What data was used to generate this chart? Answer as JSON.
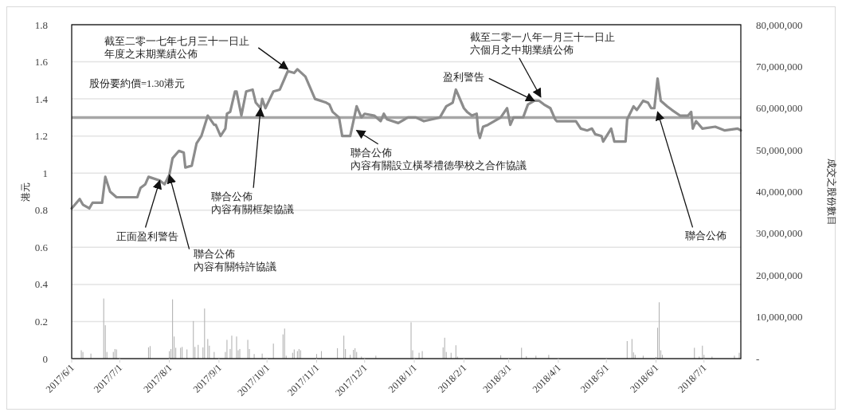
{
  "chart_data": {
    "type": "line",
    "xlabel": null,
    "ylabel": "港元",
    "y2label": "成交之股份數目",
    "xlim": [
      "2017-06-01",
      "2018-07-24"
    ],
    "xticks": [
      {
        "value": "2017-06-01",
        "label": "2017/6/1"
      },
      {
        "value": "2017-07-01",
        "label": "2017/7/1"
      },
      {
        "value": "2017-08-01",
        "label": "2017/8/1"
      },
      {
        "value": "2017-09-01",
        "label": "2017/9/1"
      },
      {
        "value": "2017-10-01",
        "label": "2017/10/1"
      },
      {
        "value": "2017-11-01",
        "label": "2017/11/1"
      },
      {
        "value": "2017-12-01",
        "label": "2017/12/1"
      },
      {
        "value": "2018-01-01",
        "label": "2018/1/1"
      },
      {
        "value": "2018-02-01",
        "label": "2018/2/1"
      },
      {
        "value": "2018-03-01",
        "label": "2018/3/1"
      },
      {
        "value": "2018-04-01",
        "label": "2018/4/1"
      },
      {
        "value": "2018-05-01",
        "label": "2018/5/1"
      },
      {
        "value": "2018-06-01",
        "label": "2018/6/1"
      },
      {
        "value": "2018-07-01",
        "label": "2018/7/1"
      }
    ],
    "ylim": [
      0,
      1.8
    ],
    "yticks": [
      0,
      0.2,
      0.4,
      0.6,
      0.8,
      1,
      1.2,
      1.4,
      1.6,
      1.8
    ],
    "y2lim": [
      0,
      80000000
    ],
    "y2ticks": [
      {
        "value": 0,
        "label": "-"
      },
      {
        "value": 10000000,
        "label": "10,000,000"
      },
      {
        "value": 20000000,
        "label": "20,000,000"
      },
      {
        "value": 30000000,
        "label": "30,000,000"
      },
      {
        "value": 40000000,
        "label": "40,000,000"
      },
      {
        "value": 50000000,
        "label": "50,000,000"
      },
      {
        "value": 60000000,
        "label": "60,000,000"
      },
      {
        "value": 70000000,
        "label": "70,000,000"
      },
      {
        "value": 80000000,
        "label": "80,000,000"
      }
    ],
    "grid": "y",
    "line_style": "solid",
    "marker": "none",
    "series": [
      {
        "color": "#8c8c8c",
        "x": [
          "2017-06-01",
          "2017-06-06",
          "2017-06-08",
          "2017-06-12",
          "2017-06-14",
          "2017-06-20",
          "2017-06-22",
          "2017-06-25",
          "2017-06-29",
          "2017-07-06",
          "2017-07-12",
          "2017-07-14",
          "2017-07-17",
          "2017-07-19",
          "2017-07-26",
          "2017-07-29",
          "2017-08-01",
          "2017-08-03",
          "2017-08-07",
          "2017-08-10",
          "2017-08-11",
          "2017-08-15",
          "2017-08-18",
          "2017-08-21",
          "2017-08-25",
          "2017-08-29",
          "2017-08-30",
          "2017-09-02",
          "2017-09-05",
          "2017-09-06",
          "2017-09-08",
          "2017-09-11",
          "2017-09-12",
          "2017-09-15",
          "2017-09-18",
          "2017-09-22",
          "2017-09-24",
          "2017-09-27",
          "2017-09-28",
          "2017-09-30",
          "2017-10-05",
          "2017-10-09",
          "2017-10-12",
          "2017-10-14",
          "2017-10-18",
          "2017-10-20",
          "2017-10-25",
          "2017-10-31",
          "2017-11-07",
          "2017-11-09",
          "2017-11-11",
          "2017-11-15",
          "2017-11-17",
          "2017-11-22",
          "2017-11-26",
          "2017-11-29",
          "2017-12-01",
          "2017-12-07",
          "2017-12-11",
          "2017-12-13",
          "2017-12-15",
          "2017-12-22",
          "2017-12-28",
          "2018-01-02",
          "2018-01-07",
          "2018-01-12",
          "2018-01-17",
          "2018-01-21",
          "2018-01-25",
          "2018-01-27",
          "2018-02-01",
          "2018-02-03",
          "2018-02-06",
          "2018-02-09",
          "2018-02-10",
          "2018-02-11",
          "2018-02-13",
          "2018-02-16",
          "2018-02-24",
          "2018-02-28",
          "2018-03-02",
          "2018-03-04",
          "2018-03-10",
          "2018-03-13",
          "2018-03-17",
          "2018-03-20",
          "2018-03-23",
          "2018-03-27",
          "2018-03-30",
          "2018-03-31",
          "2018-04-12",
          "2018-04-15",
          "2018-04-19",
          "2018-04-22",
          "2018-04-24",
          "2018-04-28",
          "2018-04-29",
          "2018-05-04",
          "2018-05-06",
          "2018-05-13",
          "2018-05-14",
          "2018-05-18",
          "2018-05-20",
          "2018-05-24",
          "2018-05-27",
          "2018-05-29",
          "2018-05-31",
          "2018-06-02",
          "2018-06-04",
          "2018-06-08",
          "2018-06-11",
          "2018-06-16",
          "2018-06-21",
          "2018-06-23",
          "2018-06-24",
          "2018-06-26",
          "2018-06-30",
          "2018-07-08",
          "2018-07-14",
          "2018-07-22",
          "2018-07-24"
        ],
        "values": [
          0.81,
          0.86,
          0.83,
          0.81,
          0.84,
          0.84,
          0.98,
          0.9,
          0.87,
          0.87,
          0.87,
          0.92,
          0.94,
          0.98,
          0.96,
          0.94,
          0.99,
          1.08,
          1.12,
          1.11,
          1.03,
          1.04,
          1.16,
          1.2,
          1.31,
          1.26,
          1.26,
          1.2,
          1.24,
          1.32,
          1.33,
          1.44,
          1.44,
          1.31,
          1.44,
          1.45,
          1.38,
          1.35,
          1.4,
          1.35,
          1.44,
          1.45,
          1.51,
          1.55,
          1.54,
          1.56,
          1.52,
          1.4,
          1.38,
          1.37,
          1.33,
          1.3,
          1.2,
          1.2,
          1.36,
          1.3,
          1.32,
          1.31,
          1.28,
          1.32,
          1.29,
          1.27,
          1.3,
          1.3,
          1.28,
          1.29,
          1.3,
          1.36,
          1.38,
          1.45,
          1.35,
          1.33,
          1.31,
          1.32,
          1.22,
          1.19,
          1.25,
          1.26,
          1.3,
          1.35,
          1.26,
          1.3,
          1.3,
          1.37,
          1.39,
          1.39,
          1.37,
          1.35,
          1.29,
          1.28,
          1.28,
          1.24,
          1.23,
          1.24,
          1.21,
          1.2,
          1.17,
          1.24,
          1.17,
          1.17,
          1.29,
          1.36,
          1.34,
          1.39,
          1.38,
          1.35,
          1.35,
          1.51,
          1.39,
          1.36,
          1.34,
          1.31,
          1.31,
          1.33,
          1.24,
          1.28,
          1.24,
          1.25,
          1.23,
          1.24,
          1.23
        ]
      },
      {
        "type": "bar",
        "axis": "y2",
        "color": "#b4b4b4",
        "x": [
          "2017-06-07",
          "2017-06-08",
          "2017-06-13",
          "2017-06-21",
          "2017-06-22",
          "2017-06-23",
          "2017-06-27",
          "2017-06-28",
          "2017-06-29",
          "2017-07-19",
          "2017-07-20",
          "2017-08-01",
          "2017-08-02",
          "2017-08-03",
          "2017-08-04",
          "2017-08-05",
          "2017-08-08",
          "2017-08-09",
          "2017-08-12",
          "2017-08-16",
          "2017-08-17",
          "2017-08-19",
          "2017-08-22",
          "2017-08-23",
          "2017-08-25",
          "2017-08-26",
          "2017-08-29",
          "2017-09-05",
          "2017-09-06",
          "2017-09-08",
          "2017-09-09",
          "2017-09-12",
          "2017-09-13",
          "2017-09-14",
          "2017-09-19",
          "2017-09-20",
          "2017-09-23",
          "2017-09-28",
          "2017-10-05",
          "2017-10-11",
          "2017-10-12",
          "2017-10-13",
          "2017-10-17",
          "2017-10-18",
          "2017-10-20",
          "2017-10-21",
          "2017-10-22",
          "2017-11-01",
          "2017-11-04",
          "2017-11-14",
          "2017-11-18",
          "2017-11-19",
          "2017-11-22",
          "2017-11-24",
          "2017-11-25",
          "2017-11-26",
          "2017-11-29",
          "2017-12-08",
          "2017-12-30",
          "2017-12-31",
          "2018-01-04",
          "2018-01-06",
          "2018-01-19",
          "2018-01-20",
          "2018-01-21",
          "2018-01-24",
          "2018-01-27",
          "2018-01-28",
          "2018-02-24",
          "2018-03-09",
          "2018-03-12",
          "2018-03-18",
          "2018-03-26",
          "2018-05-14",
          "2018-05-17",
          "2018-05-18",
          "2018-05-19",
          "2018-05-24",
          "2018-06-01",
          "2018-06-02",
          "2018-06-03",
          "2018-06-04",
          "2018-06-05",
          "2018-06-25",
          "2018-06-28",
          "2018-06-30",
          "2018-07-01",
          "2018-07-06",
          "2018-07-20",
          "2018-07-23"
        ],
        "values": [
          2000000,
          1600000,
          1200000,
          14400000,
          8000000,
          1600000,
          1600000,
          2300000,
          2200000,
          2700000,
          3000000,
          1800000,
          2300000,
          14200000,
          5300000,
          2600000,
          2600000,
          2800000,
          2200000,
          9000000,
          2800000,
          3300000,
          2700000,
          12000000,
          4700000,
          3100000,
          1600000,
          1600000,
          4500000,
          2300000,
          5500000,
          5300000,
          2000000,
          2300000,
          4500000,
          2300000,
          1100000,
          1200000,
          3600000,
          5800000,
          7200000,
          700000,
          1400000,
          2200000,
          1800000,
          2300000,
          2000000,
          1100000,
          1800000,
          2500000,
          5500000,
          2300000,
          900000,
          2100000,
          2500000,
          1600000,
          500000,
          700000,
          8700000,
          2000000,
          1400000,
          1800000,
          2700000,
          5000000,
          1600000,
          1400000,
          3200000,
          500000,
          800000,
          2600000,
          600000,
          700000,
          900000,
          4200000,
          4700000,
          1500000,
          900000,
          700000,
          400000,
          7400000,
          13500000,
          2000000,
          900000,
          2600000,
          500000,
          3100000,
          900000,
          500000,
          700000,
          1400000
        ]
      }
    ],
    "ref_lines": [
      {
        "axis": "y",
        "value": 1.3,
        "label": "股份要約價=1.30港元",
        "color": "#a6a6a6"
      }
    ],
    "annotations": [
      {
        "text": "截至二零一七年七月三十一日止年度之末期業績公佈",
        "x": "2017-10-14",
        "y": 1.56
      },
      {
        "text": "截至二零一八年一月三十一日止六個月之中期業績公佈",
        "x": "2018-03-21",
        "y": 1.41
      },
      {
        "text": "盈利警告",
        "x": "2018-03-17",
        "y": 1.39
      },
      {
        "text": "聯合公佈內容有關框架協議",
        "x": "2017-09-27",
        "y": 1.35
      },
      {
        "text": "聯合公佈內容有關設立橫琴禮德學校之合作協議",
        "x": "2017-11-26",
        "y": 1.23
      },
      {
        "text": "正面盈利警告",
        "x": "2017-07-26",
        "y": 0.96
      },
      {
        "text": "聯合公佈內容有關特許協議",
        "x": "2017-08-01",
        "y": 0.99
      },
      {
        "text": "聯合公佈",
        "x": "2018-06-02",
        "y": 1.33
      }
    ]
  }
}
